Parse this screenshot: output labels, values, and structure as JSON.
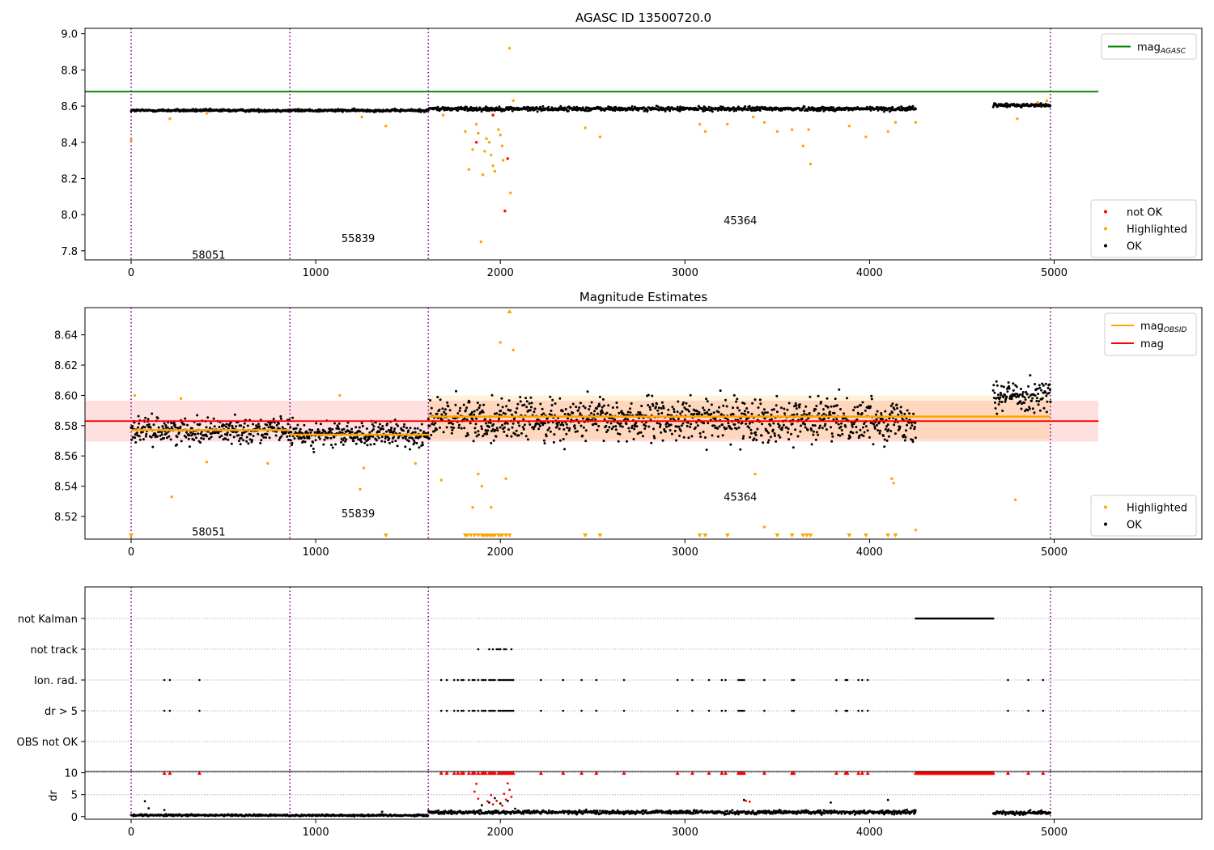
{
  "chart_data": [
    {
      "type": "scatter",
      "title": "AGASC ID 13500720.0",
      "xlim": [
        -250,
        5800
      ],
      "ylim": [
        7.75,
        9.03
      ],
      "xticks": [
        0,
        1000,
        2000,
        3000,
        4000,
        5000
      ],
      "yticks": [
        7.8,
        8.0,
        8.2,
        8.4,
        8.6,
        8.8,
        9.0
      ],
      "ytick_labels": [
        "7.8",
        "8.0",
        "8.2",
        "8.4",
        "8.6",
        "8.8",
        "9.0"
      ],
      "obsid_boundaries": [
        0,
        860,
        1610,
        4980
      ],
      "obsid_labels": [
        {
          "text": "58051",
          "x": 420,
          "y": 7.78
        },
        {
          "text": "55839",
          "x": 1230,
          "y": 7.87
        },
        {
          "text": "45364",
          "x": 3300,
          "y": 7.97
        }
      ],
      "agasc_mag": 8.68,
      "agasc_mag_xrange": [
        -250,
        5240
      ],
      "ok_segments": [
        {
          "x_start": 0,
          "x_end": 1610,
          "mean": 8.576,
          "spread": 0.007
        },
        {
          "x_start": 1610,
          "x_end": 4250,
          "mean": 8.585,
          "spread": 0.012
        },
        {
          "x_start": 4670,
          "x_end": 4980,
          "mean": 8.605,
          "spread": 0.01
        }
      ],
      "highlighted_points": [
        {
          "x": 0,
          "y": 8.41
        },
        {
          "x": 210,
          "y": 8.53
        },
        {
          "x": 410,
          "y": 8.56
        },
        {
          "x": 1250,
          "y": 8.54
        },
        {
          "x": 1380,
          "y": 8.49
        },
        {
          "x": 1690,
          "y": 8.55
        },
        {
          "x": 1810,
          "y": 8.46
        },
        {
          "x": 1830,
          "y": 8.25
        },
        {
          "x": 1850,
          "y": 8.36
        },
        {
          "x": 1870,
          "y": 8.5
        },
        {
          "x": 1880,
          "y": 8.45
        },
        {
          "x": 1895,
          "y": 7.85
        },
        {
          "x": 1905,
          "y": 8.22
        },
        {
          "x": 1915,
          "y": 8.35
        },
        {
          "x": 1925,
          "y": 8.42
        },
        {
          "x": 1940,
          "y": 8.4
        },
        {
          "x": 1950,
          "y": 8.33
        },
        {
          "x": 1960,
          "y": 8.27
        },
        {
          "x": 1970,
          "y": 8.24
        },
        {
          "x": 1990,
          "y": 8.47
        },
        {
          "x": 2000,
          "y": 8.44
        },
        {
          "x": 2010,
          "y": 8.38
        },
        {
          "x": 2015,
          "y": 8.3
        },
        {
          "x": 2050,
          "y": 8.92
        },
        {
          "x": 2055,
          "y": 8.12
        },
        {
          "x": 2070,
          "y": 8.63
        },
        {
          "x": 2460,
          "y": 8.48
        },
        {
          "x": 2540,
          "y": 8.43
        },
        {
          "x": 3080,
          "y": 8.5
        },
        {
          "x": 3110,
          "y": 8.46
        },
        {
          "x": 3230,
          "y": 8.5
        },
        {
          "x": 3370,
          "y": 8.54
        },
        {
          "x": 3430,
          "y": 8.51
        },
        {
          "x": 3500,
          "y": 8.46
        },
        {
          "x": 3580,
          "y": 8.47
        },
        {
          "x": 3640,
          "y": 8.38
        },
        {
          "x": 3670,
          "y": 8.47
        },
        {
          "x": 3680,
          "y": 8.28
        },
        {
          "x": 3890,
          "y": 8.49
        },
        {
          "x": 3980,
          "y": 8.43
        },
        {
          "x": 4100,
          "y": 8.46
        },
        {
          "x": 4140,
          "y": 8.51
        },
        {
          "x": 4250,
          "y": 8.51
        },
        {
          "x": 4800,
          "y": 8.53
        },
        {
          "x": 4910,
          "y": 8.62
        },
        {
          "x": 4960,
          "y": 8.63
        }
      ],
      "not_ok_points": [
        {
          "x": 1870,
          "y": 8.4
        },
        {
          "x": 2025,
          "y": 8.02
        },
        {
          "x": 2040,
          "y": 8.31
        },
        {
          "x": 1960,
          "y": 8.55
        }
      ],
      "legends": [
        {
          "position": "upper-right",
          "entries": [
            {
              "label": "mag",
              "subscript": "AGASC",
              "marker": "line",
              "color": "#008000"
            }
          ]
        },
        {
          "position": "lower-right",
          "entries": [
            {
              "label": "not OK",
              "marker": "dot",
              "color": "#ff0000"
            },
            {
              "label": "Highlighted",
              "marker": "dot",
              "color": "#ffa500"
            },
            {
              "label": "OK",
              "marker": "dot",
              "color": "#000000"
            }
          ]
        }
      ]
    },
    {
      "type": "scatter",
      "title": "Magnitude Estimates",
      "xlim": [
        -250,
        5800
      ],
      "ylim": [
        8.505,
        8.658
      ],
      "xticks": [
        0,
        1000,
        2000,
        3000,
        4000,
        5000
      ],
      "yticks": [
        8.52,
        8.54,
        8.56,
        8.58,
        8.6,
        8.62,
        8.64
      ],
      "ytick_labels": [
        "8.52",
        "8.54",
        "8.56",
        "8.58",
        "8.60",
        "8.62",
        "8.64"
      ],
      "obsid_boundaries": [
        0,
        860,
        1610,
        4980
      ],
      "obsid_labels": [
        {
          "text": "58051",
          "x": 420,
          "y": 8.51
        },
        {
          "text": "55839",
          "x": 1230,
          "y": 8.522
        },
        {
          "text": "45364",
          "x": 3300,
          "y": 8.533
        }
      ],
      "mag": 8.583,
      "mag_band": [
        8.5695,
        8.5965
      ],
      "mag_xrange": [
        -250,
        5240
      ],
      "mag_obsid": [
        {
          "x_start": 0,
          "x_end": 860,
          "value": 8.577
        },
        {
          "x_start": 860,
          "x_end": 1610,
          "value": 8.574
        },
        {
          "x_start": 1610,
          "x_end": 4980,
          "value": 8.586,
          "band": [
            8.571,
            8.6
          ]
        }
      ],
      "ok_segments": [
        {
          "x_start": 0,
          "x_end": 860,
          "mean": 8.577,
          "spread": 0.008
        },
        {
          "x_start": 860,
          "x_end": 1610,
          "mean": 8.574,
          "spread": 0.008
        },
        {
          "x_start": 1610,
          "x_end": 4250,
          "mean": 8.584,
          "spread": 0.014
        },
        {
          "x_start": 4670,
          "x_end": 4980,
          "mean": 8.6,
          "spread": 0.011
        }
      ],
      "highlighted_points": [
        {
          "x": 20,
          "y": 8.6
        },
        {
          "x": 220,
          "y": 8.533
        },
        {
          "x": 270,
          "y": 8.598
        },
        {
          "x": 410,
          "y": 8.556
        },
        {
          "x": 740,
          "y": 8.555
        },
        {
          "x": 1130,
          "y": 8.6
        },
        {
          "x": 1240,
          "y": 8.538
        },
        {
          "x": 1260,
          "y": 8.552
        },
        {
          "x": 1540,
          "y": 8.555
        },
        {
          "x": 1680,
          "y": 8.544
        },
        {
          "x": 1850,
          "y": 8.526
        },
        {
          "x": 1880,
          "y": 8.548
        },
        {
          "x": 1900,
          "y": 8.54
        },
        {
          "x": 1950,
          "y": 8.526
        },
        {
          "x": 2000,
          "y": 8.635
        },
        {
          "x": 2030,
          "y": 8.545
        },
        {
          "x": 2070,
          "y": 8.63
        },
        {
          "x": 3380,
          "y": 8.548
        },
        {
          "x": 3430,
          "y": 8.513
        },
        {
          "x": 4120,
          "y": 8.545
        },
        {
          "x": 4130,
          "y": 8.542
        },
        {
          "x": 4250,
          "y": 8.511
        },
        {
          "x": 4790,
          "y": 8.531
        }
      ],
      "clipped_low_x": [
        0,
        1380,
        1810,
        1820,
        1840,
        1860,
        1880,
        1900,
        1910,
        1920,
        1930,
        1940,
        1950,
        1960,
        1970,
        1990,
        2000,
        2010,
        2030,
        2050,
        2460,
        2540,
        3080,
        3110,
        3230,
        3500,
        3580,
        3640,
        3660,
        3680,
        3890,
        3980,
        4100,
        4140
      ],
      "clipped_high_x": [
        2050
      ],
      "legends": [
        {
          "position": "upper-right",
          "entries": [
            {
              "label": "mag",
              "subscript": "OBSID",
              "marker": "line",
              "color": "#ffa500"
            },
            {
              "label": "mag",
              "marker": "line",
              "color": "#ff0000"
            }
          ]
        },
        {
          "position": "lower-right",
          "entries": [
            {
              "label": "Highlighted",
              "marker": "dot",
              "color": "#ffa500"
            },
            {
              "label": "OK",
              "marker": "dot",
              "color": "#000000"
            }
          ]
        }
      ]
    },
    {
      "type": "scatter",
      "xlim": [
        -250,
        5800
      ],
      "xticks": [
        0,
        1000,
        2000,
        3000,
        4000,
        5000
      ],
      "obsid_boundaries": [
        0,
        860,
        1610,
        4980
      ],
      "flag_rows": [
        "not Kalman",
        "not track",
        "Ion. rad.",
        "dr > 5",
        "OBS not OK"
      ],
      "flag_points": {
        "not Kalman": {
          "ranges": [
            [
              4250,
              4670
            ]
          ]
        },
        "not track": {
          "x": [
            1880,
            1940,
            1960,
            1980,
            1990,
            2000,
            2020,
            2030,
            2060
          ]
        },
        "Ion. rad.": {
          "x": [
            180,
            210,
            370,
            1680,
            1710,
            1750,
            1770,
            1790,
            1800,
            1830,
            1850,
            1860,
            1880,
            1900,
            1910,
            1920,
            1940,
            1950,
            1960,
            1970,
            1990,
            2000,
            2010,
            2020,
            2030,
            2040,
            2050,
            2060,
            2070,
            2220,
            2340,
            2440,
            2520,
            2670,
            2960,
            3040,
            3130,
            3200,
            3220,
            3290,
            3300,
            3310,
            3320,
            3430,
            3580,
            3590,
            3820,
            3870,
            3880,
            3940,
            3960,
            3990,
            4750,
            4860,
            4940
          ]
        },
        "dr > 5": {
          "x": [
            180,
            210,
            370,
            1680,
            1710,
            1750,
            1770,
            1790,
            1800,
            1830,
            1850,
            1860,
            1880,
            1900,
            1910,
            1920,
            1940,
            1950,
            1960,
            1970,
            1990,
            2000,
            2010,
            2020,
            2030,
            2040,
            2050,
            2060,
            2070,
            2220,
            2340,
            2440,
            2520,
            2670,
            2960,
            3040,
            3130,
            3200,
            3220,
            3290,
            3300,
            3310,
            3320,
            3430,
            3580,
            3590,
            3820,
            3870,
            3880,
            3940,
            3960,
            3990,
            4750,
            4860,
            4940
          ]
        },
        "OBS not OK": {
          "x": []
        }
      }
    },
    {
      "type": "scatter",
      "ylabel": "dr",
      "xlim": [
        -250,
        5800
      ],
      "ylim": [
        -0.6,
        10.3
      ],
      "xticks": [
        0,
        1000,
        2000,
        3000,
        4000,
        5000
      ],
      "yticks": [
        0,
        5,
        10
      ],
      "obsid_boundaries": [
        0,
        860,
        1610,
        4980
      ],
      "dr_clip_value": 10,
      "ok_segments": [
        {
          "x_start": 0,
          "x_end": 1610,
          "mean": 0.3,
          "spread": 0.25
        },
        {
          "x_start": 1610,
          "x_end": 4250,
          "mean": 1.0,
          "spread": 0.5
        },
        {
          "x_start": 4670,
          "x_end": 4980,
          "mean": 0.9,
          "spread": 0.5
        }
      ],
      "ok_outliers": [
        {
          "x": 75,
          "y": 3.5
        },
        {
          "x": 95,
          "y": 1.9
        },
        {
          "x": 180,
          "y": 1.5
        },
        {
          "x": 1360,
          "y": 1.1
        },
        {
          "x": 1900,
          "y": 2.6
        },
        {
          "x": 1940,
          "y": 3.2
        },
        {
          "x": 1970,
          "y": 4.2
        },
        {
          "x": 2000,
          "y": 3.0
        },
        {
          "x": 2040,
          "y": 3.6
        },
        {
          "x": 2080,
          "y": 1.8
        },
        {
          "x": 3320,
          "y": 3.8
        },
        {
          "x": 3790,
          "y": 3.2
        },
        {
          "x": 4100,
          "y": 3.8
        }
      ],
      "red_points": [
        {
          "x": 1860,
          "y": 5.7
        },
        {
          "x": 1870,
          "y": 7.5
        },
        {
          "x": 1880,
          "y": 4.1
        },
        {
          "x": 1930,
          "y": 3.5
        },
        {
          "x": 1950,
          "y": 4.9
        },
        {
          "x": 1960,
          "y": 2.8
        },
        {
          "x": 1980,
          "y": 3.6
        },
        {
          "x": 2010,
          "y": 2.5
        },
        {
          "x": 2020,
          "y": 5.2
        },
        {
          "x": 2030,
          "y": 3.9
        },
        {
          "x": 2040,
          "y": 7.6
        },
        {
          "x": 2050,
          "y": 6.1
        },
        {
          "x": 2060,
          "y": 4.5
        },
        {
          "x": 3330,
          "y": 3.6
        },
        {
          "x": 3350,
          "y": 3.4
        }
      ]
    }
  ]
}
